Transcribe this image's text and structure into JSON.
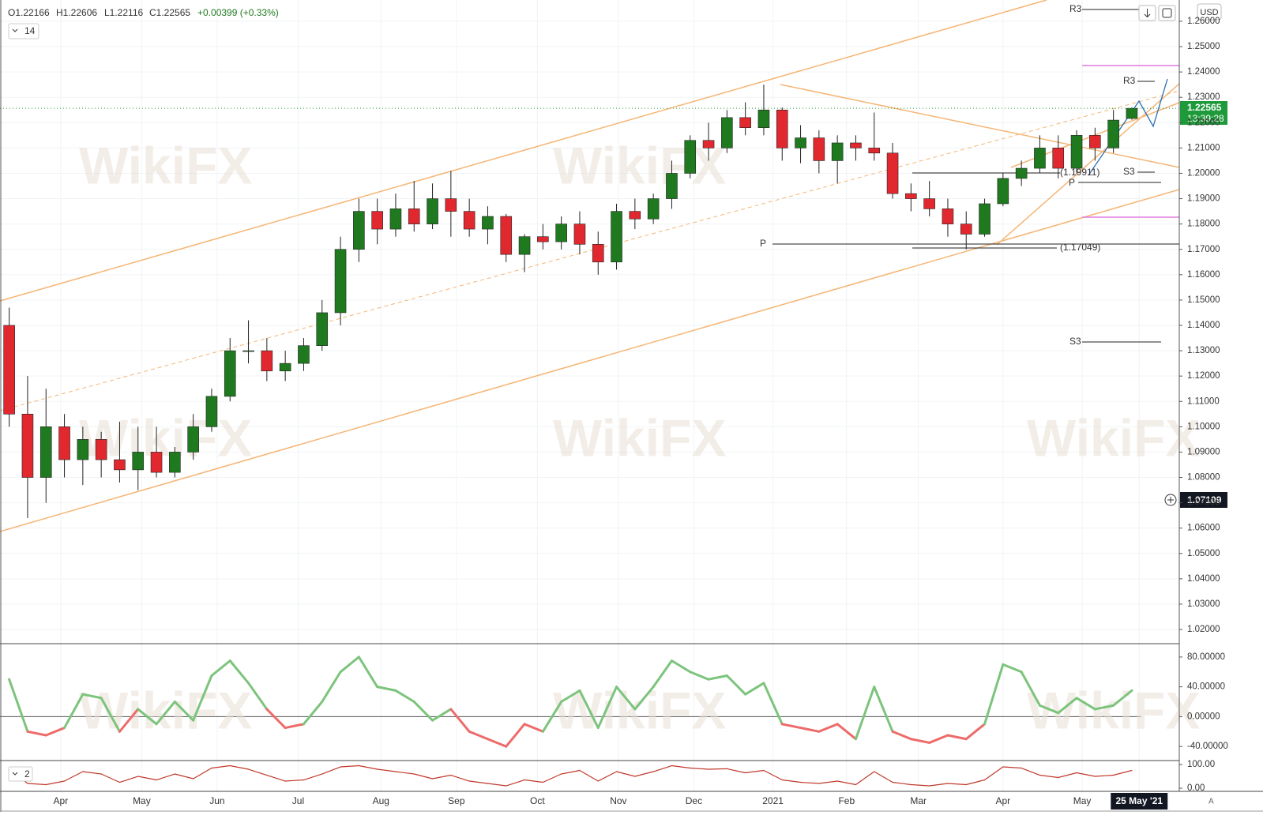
{
  "header": {
    "open": "O1.22166",
    "high": "H1.22606",
    "low": "L1.22116",
    "close": "C1.22565",
    "change": "+0.00399 (+0.33%)",
    "indicator_length": "14",
    "lower_setting": "2",
    "currency": "USD",
    "last_price": "1.22565",
    "countdown": "13:39:28",
    "crosshair_price": "1.07109",
    "watermark": "WikiFX"
  },
  "chart_data": [
    {
      "type": "candlestick",
      "up_color": "#1f7a1f",
      "down_color": "#e0282e",
      "categories": [
        null,
        null,
        null,
        null,
        null,
        null,
        null,
        null,
        null,
        null,
        null,
        null,
        null,
        null,
        null,
        null,
        null,
        null,
        null,
        null,
        null,
        null,
        null,
        null,
        null,
        null,
        null,
        null,
        null,
        null,
        null,
        null,
        null,
        null,
        null,
        null,
        null,
        null,
        null,
        null,
        null,
        null,
        null,
        null,
        null,
        null,
        null,
        null,
        null,
        null,
        null,
        null,
        null,
        null,
        null,
        null,
        null,
        null,
        null,
        null,
        null,
        null
      ],
      "ohlc": [
        [
          1.14,
          1.147,
          1.1,
          1.105
        ],
        [
          1.105,
          1.12,
          1.064,
          1.08
        ],
        [
          1.08,
          1.115,
          1.07,
          1.1
        ],
        [
          1.1,
          1.105,
          1.08,
          1.087
        ],
        [
          1.087,
          1.1,
          1.077,
          1.095
        ],
        [
          1.095,
          1.098,
          1.08,
          1.087
        ],
        [
          1.087,
          1.102,
          1.078,
          1.083
        ],
        [
          1.083,
          1.1,
          1.075,
          1.09
        ],
        [
          1.09,
          1.1,
          1.08,
          1.082
        ],
        [
          1.082,
          1.092,
          1.08,
          1.09
        ],
        [
          1.09,
          1.105,
          1.087,
          1.1
        ],
        [
          1.1,
          1.115,
          1.098,
          1.112
        ],
        [
          1.112,
          1.135,
          1.11,
          1.13
        ],
        [
          1.13,
          1.142,
          1.125,
          1.13
        ],
        [
          1.13,
          1.135,
          1.118,
          1.122
        ],
        [
          1.122,
          1.13,
          1.118,
          1.125
        ],
        [
          1.125,
          1.135,
          1.122,
          1.132
        ],
        [
          1.132,
          1.15,
          1.13,
          1.145
        ],
        [
          1.145,
          1.175,
          1.14,
          1.17
        ],
        [
          1.17,
          1.19,
          1.165,
          1.185
        ],
        [
          1.185,
          1.19,
          1.172,
          1.178
        ],
        [
          1.178,
          1.192,
          1.175,
          1.186
        ],
        [
          1.186,
          1.197,
          1.177,
          1.18
        ],
        [
          1.18,
          1.196,
          1.178,
          1.19
        ],
        [
          1.19,
          1.201,
          1.175,
          1.185
        ],
        [
          1.185,
          1.19,
          1.175,
          1.178
        ],
        [
          1.178,
          1.187,
          1.172,
          1.183
        ],
        [
          1.183,
          1.184,
          1.165,
          1.168
        ],
        [
          1.168,
          1.176,
          1.161,
          1.175
        ],
        [
          1.175,
          1.18,
          1.17,
          1.173
        ],
        [
          1.173,
          1.183,
          1.17,
          1.18
        ],
        [
          1.18,
          1.185,
          1.168,
          1.172
        ],
        [
          1.172,
          1.177,
          1.16,
          1.165
        ],
        [
          1.165,
          1.188,
          1.162,
          1.185
        ],
        [
          1.185,
          1.19,
          1.178,
          1.182
        ],
        [
          1.182,
          1.192,
          1.18,
          1.19
        ],
        [
          1.19,
          1.205,
          1.186,
          1.2
        ],
        [
          1.2,
          1.215,
          1.198,
          1.213
        ],
        [
          1.213,
          1.22,
          1.205,
          1.21
        ],
        [
          1.21,
          1.225,
          1.208,
          1.222
        ],
        [
          1.222,
          1.228,
          1.215,
          1.218
        ],
        [
          1.218,
          1.235,
          1.215,
          1.225
        ],
        [
          1.225,
          1.226,
          1.205,
          1.21
        ],
        [
          1.21,
          1.219,
          1.204,
          1.214
        ],
        [
          1.214,
          1.217,
          1.2,
          1.205
        ],
        [
          1.205,
          1.215,
          1.196,
          1.212
        ],
        [
          1.212,
          1.215,
          1.205,
          1.21
        ],
        [
          1.21,
          1.224,
          1.205,
          1.208
        ],
        [
          1.208,
          1.212,
          1.19,
          1.192
        ],
        [
          1.192,
          1.196,
          1.185,
          1.19
        ],
        [
          1.19,
          1.197,
          1.183,
          1.186
        ],
        [
          1.186,
          1.19,
          1.175,
          1.18
        ],
        [
          1.18,
          1.185,
          1.17,
          1.176
        ],
        [
          1.176,
          1.19,
          1.175,
          1.188
        ],
        [
          1.188,
          1.2,
          1.187,
          1.198
        ],
        [
          1.198,
          1.205,
          1.195,
          1.202
        ],
        [
          1.202,
          1.215,
          1.2,
          1.21
        ],
        [
          1.21,
          1.215,
          1.198,
          1.202
        ],
        [
          1.202,
          1.217,
          1.2,
          1.215
        ],
        [
          1.215,
          1.218,
          1.205,
          1.21
        ],
        [
          1.21,
          1.225,
          1.208,
          1.221
        ],
        [
          1.22166,
          1.22606,
          1.22116,
          1.22565
        ]
      ],
      "ylim": [
        1.0144,
        1.2684
      ],
      "yticks": [
        {
          "value": 1.02,
          "label": "1.02000"
        },
        {
          "value": 1.03,
          "label": "1.03000"
        },
        {
          "value": 1.04,
          "label": "1.04000"
        },
        {
          "value": 1.05,
          "label": "1.05000"
        },
        {
          "value": 1.06,
          "label": "1.06000"
        },
        {
          "value": 1.07,
          "label": "1.07000"
        },
        {
          "value": 1.08,
          "label": "1.08000"
        },
        {
          "value": 1.09,
          "label": "1.09000"
        },
        {
          "value": 1.1,
          "label": "1.10000"
        },
        {
          "value": 1.11,
          "label": "1.11000"
        },
        {
          "value": 1.12,
          "label": "1.12000"
        },
        {
          "value": 1.13,
          "label": "1.13000"
        },
        {
          "value": 1.14,
          "label": "1.14000"
        },
        {
          "value": 1.15,
          "label": "1.15000"
        },
        {
          "value": 1.16,
          "label": "1.16000"
        },
        {
          "value": 1.17,
          "label": "1.17000"
        },
        {
          "value": 1.18,
          "label": "1.18000"
        },
        {
          "value": 1.19,
          "label": "1.19000"
        },
        {
          "value": 1.2,
          "label": "1.20000"
        },
        {
          "value": 1.21,
          "label": "1.21000"
        },
        {
          "value": 1.22,
          "label": "1.22000"
        },
        {
          "value": 1.23,
          "label": "1.23000"
        },
        {
          "value": 1.24,
          "label": "1.24000"
        },
        {
          "value": 1.25,
          "label": "1.25000"
        },
        {
          "value": 1.26,
          "label": "1.26000"
        }
      ],
      "xticks": [
        {
          "value": 2.8,
          "label": "Apr"
        },
        {
          "value": 7.2,
          "label": "May"
        },
        {
          "value": 11.3,
          "label": "Jun"
        },
        {
          "value": 15.7,
          "label": "Jul"
        },
        {
          "value": 20.2,
          "label": "Aug"
        },
        {
          "value": 24.3,
          "label": "Sep"
        },
        {
          "value": 28.7,
          "label": "Oct"
        },
        {
          "value": 33.1,
          "label": "Nov"
        },
        {
          "value": 37.2,
          "label": "Dec"
        },
        {
          "value": 41.5,
          "label": "2021"
        },
        {
          "value": 45.5,
          "label": "Feb"
        },
        {
          "value": 49.4,
          "label": "Mar"
        },
        {
          "value": 54,
          "label": "Apr"
        },
        {
          "value": 58.3,
          "label": "May"
        },
        {
          "value": 61.4,
          "label": "25 May '21"
        }
      ],
      "grid": true,
      "annotations": [
        "R3",
        "P",
        "S3",
        "(1.19911)",
        "(1.17049)",
        "P",
        "R3",
        "S3"
      ]
    },
    {
      "type": "line",
      "pos_color": "#7cc47c",
      "neg_color": "#ee6b6b",
      "values": [
        50,
        -20,
        -25,
        -15,
        30,
        25,
        -20,
        10,
        -10,
        20,
        -5,
        55,
        75,
        45,
        10,
        -15,
        -10,
        20,
        60,
        80,
        40,
        35,
        20,
        -5,
        10,
        -20,
        -30,
        -40,
        -10,
        -20,
        20,
        35,
        -15,
        40,
        10,
        40,
        75,
        60,
        50,
        55,
        30,
        45,
        -10,
        -15,
        -20,
        -10,
        -30,
        40,
        -20,
        -30,
        -35,
        -25,
        -30,
        -10,
        70,
        60,
        15,
        5,
        25,
        10,
        15,
        35
      ],
      "ylim": [
        -58.9,
        97.9
      ],
      "yticks": [
        {
          "value": -40,
          "label": "-40.00000"
        },
        {
          "value": 0,
          "label": "0.00000"
        },
        {
          "value": 40,
          "label": "40.00000"
        },
        {
          "value": 80,
          "label": "80.00000"
        }
      ]
    },
    {
      "type": "line",
      "color": "#c0392b",
      "values": [
        80,
        20,
        15,
        30,
        70,
        60,
        25,
        50,
        35,
        60,
        40,
        85,
        95,
        80,
        55,
        30,
        35,
        60,
        90,
        95,
        80,
        70,
        60,
        40,
        55,
        30,
        20,
        10,
        35,
        25,
        60,
        75,
        30,
        70,
        50,
        70,
        95,
        85,
        80,
        82,
        65,
        75,
        35,
        25,
        20,
        30,
        15,
        70,
        25,
        15,
        10,
        20,
        15,
        35,
        90,
        85,
        55,
        45,
        65,
        50,
        55,
        75
      ],
      "ylim": [
        -13.3,
        116.7
      ],
      "yticks": [
        {
          "value": 0,
          "label": "0.00"
        },
        {
          "value": 100,
          "label": "100.00"
        }
      ]
    }
  ]
}
